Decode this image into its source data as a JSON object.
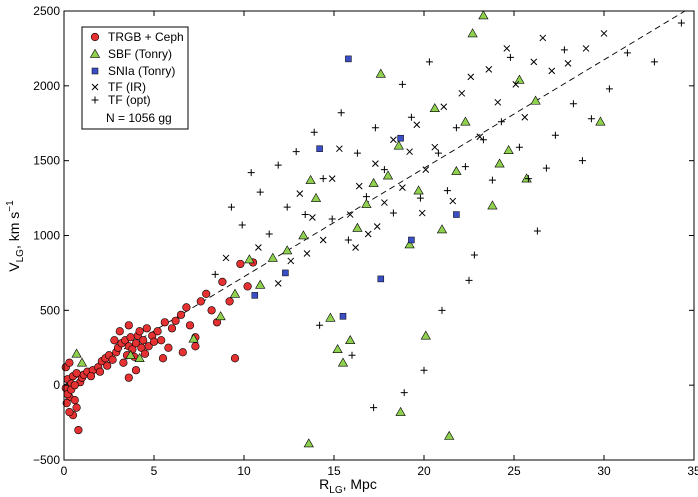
{
  "chart_data": {
    "type": "scatter",
    "xlabel": "R",
    "xlabel_sub": "LG",
    "xlabel_unit": ", Mpc",
    "ylabel": "V",
    "ylabel_sub": "LG",
    "ylabel_unit": ", km s",
    "ylabel_sup": "−1",
    "xlim": [
      0,
      35
    ],
    "ylim": [
      -500,
      2500
    ],
    "xticks": [
      0,
      5,
      10,
      15,
      20,
      25,
      30,
      35
    ],
    "yticks": [
      -500,
      0,
      500,
      1000,
      1500,
      2000,
      2500
    ],
    "legend_position": "top-left",
    "legend_note": "N = 1056 gg",
    "fit_line": {
      "style": "dashed",
      "x": [
        0,
        34.5
      ],
      "y": [
        0,
        2500
      ]
    },
    "colors": {
      "trgb": "#e53131",
      "sbf": "#8fd14f",
      "snia": "#3b4fc4",
      "markers": "#000000"
    },
    "series": [
      {
        "name": "TRGB + Ceph",
        "marker": "circle",
        "points": [
          [
            0.1,
            -20
          ],
          [
            0.2,
            40
          ],
          [
            0.3,
            -80
          ],
          [
            0.4,
            10
          ],
          [
            0.5,
            60
          ],
          [
            0.1,
            120
          ],
          [
            0.3,
            150
          ],
          [
            0.6,
            -100
          ],
          [
            0.7,
            -150
          ],
          [
            0.8,
            -300
          ],
          [
            0.5,
            -200
          ],
          [
            0.2,
            -60
          ],
          [
            0.9,
            20
          ],
          [
            1.0,
            50
          ],
          [
            0.7,
            80
          ],
          [
            0.4,
            -30
          ],
          [
            1.1,
            70
          ],
          [
            1.3,
            90
          ],
          [
            1.6,
            100
          ],
          [
            1.9,
            120
          ],
          [
            2.1,
            160
          ],
          [
            2.3,
            180
          ],
          [
            2.5,
            200
          ],
          [
            2.7,
            170
          ],
          [
            2.9,
            220
          ],
          [
            3.0,
            250
          ],
          [
            3.2,
            280
          ],
          [
            3.3,
            150
          ],
          [
            3.4,
            300
          ],
          [
            3.5,
            200
          ],
          [
            3.6,
            260
          ],
          [
            3.7,
            320
          ],
          [
            3.8,
            240
          ],
          [
            3.9,
            190
          ],
          [
            4.0,
            280
          ],
          [
            4.1,
            330
          ],
          [
            4.2,
            360
          ],
          [
            4.3,
            250
          ],
          [
            4.4,
            300
          ],
          [
            4.5,
            210
          ],
          [
            4.7,
            260
          ],
          [
            4.9,
            330
          ],
          [
            5.0,
            290
          ],
          [
            5.2,
            360
          ],
          [
            5.4,
            300
          ],
          [
            5.6,
            420
          ],
          [
            5.8,
            250
          ],
          [
            6.0,
            380
          ],
          [
            6.2,
            430
          ],
          [
            6.5,
            470
          ],
          [
            6.8,
            520
          ],
          [
            7.0,
            400
          ],
          [
            7.3,
            320
          ],
          [
            7.6,
            560
          ],
          [
            7.9,
            610
          ],
          [
            8.2,
            500
          ],
          [
            8.5,
            420
          ],
          [
            8.8,
            690
          ],
          [
            9.2,
            560
          ],
          [
            9.5,
            180
          ],
          [
            9.8,
            810
          ],
          [
            10.2,
            660
          ],
          [
            10.5,
            820
          ],
          [
            2.8,
            300
          ],
          [
            3.1,
            360
          ],
          [
            3.6,
            400
          ],
          [
            4.6,
            380
          ],
          [
            2.4,
            130
          ],
          [
            3.6,
            50
          ],
          [
            4.0,
            100
          ],
          [
            5.5,
            180
          ],
          [
            6.6,
            220
          ],
          [
            7.3,
            260
          ],
          [
            0.3,
            -180
          ],
          [
            0.15,
            -120
          ],
          [
            0.6,
            0
          ],
          [
            1.5,
            60
          ],
          [
            2.0,
            90
          ]
        ]
      },
      {
        "name": "SBF (Tonry)",
        "marker": "triangle",
        "points": [
          [
            0.7,
            210
          ],
          [
            1.0,
            150
          ],
          [
            3.7,
            200
          ],
          [
            4.2,
            180
          ],
          [
            7.2,
            310
          ],
          [
            8.7,
            460
          ],
          [
            9.5,
            610
          ],
          [
            10.3,
            840
          ],
          [
            10.9,
            670
          ],
          [
            11.6,
            850
          ],
          [
            12.4,
            900
          ],
          [
            13.3,
            1000
          ],
          [
            13.6,
            -390
          ],
          [
            13.7,
            1370
          ],
          [
            14.0,
            1250
          ],
          [
            14.8,
            450
          ],
          [
            15.2,
            240
          ],
          [
            15.5,
            150
          ],
          [
            15.9,
            300
          ],
          [
            16.3,
            1050
          ],
          [
            16.8,
            1210
          ],
          [
            17.2,
            1350
          ],
          [
            17.6,
            2080
          ],
          [
            18.0,
            1400
          ],
          [
            18.6,
            1600
          ],
          [
            18.7,
            -180
          ],
          [
            19.2,
            940
          ],
          [
            19.7,
            1300
          ],
          [
            20.1,
            330
          ],
          [
            20.6,
            1850
          ],
          [
            21.0,
            1040
          ],
          [
            21.4,
            -340
          ],
          [
            21.8,
            1430
          ],
          [
            22.3,
            1760
          ],
          [
            22.7,
            2350
          ],
          [
            23.3,
            2470
          ],
          [
            23.8,
            1200
          ],
          [
            24.2,
            1480
          ],
          [
            24.7,
            1570
          ],
          [
            25.3,
            2040
          ],
          [
            25.7,
            1380
          ],
          [
            26.2,
            1900
          ],
          [
            29.8,
            1760
          ]
        ]
      },
      {
        "name": "SNIa (Tonry)",
        "marker": "square",
        "points": [
          [
            10.6,
            600
          ],
          [
            12.3,
            750
          ],
          [
            14.2,
            1580
          ],
          [
            15.5,
            460
          ],
          [
            15.8,
            2180
          ],
          [
            17.6,
            710
          ],
          [
            18.7,
            1650
          ],
          [
            19.3,
            970
          ],
          [
            21.8,
            1140
          ]
        ]
      },
      {
        "name": "TF (IR)",
        "marker": "x",
        "points": [
          [
            9.0,
            850
          ],
          [
            10.8,
            920
          ],
          [
            11.9,
            680
          ],
          [
            12.6,
            830
          ],
          [
            13.1,
            1280
          ],
          [
            13.8,
            1120
          ],
          [
            14.4,
            970
          ],
          [
            14.9,
            1380
          ],
          [
            15.3,
            1580
          ],
          [
            15.9,
            1140
          ],
          [
            16.4,
            1330
          ],
          [
            16.9,
            1010
          ],
          [
            17.3,
            1480
          ],
          [
            17.8,
            1220
          ],
          [
            18.3,
            1640
          ],
          [
            18.8,
            1320
          ],
          [
            19.2,
            1560
          ],
          [
            19.6,
            1740
          ],
          [
            20.1,
            1440
          ],
          [
            20.6,
            1590
          ],
          [
            21.1,
            1860
          ],
          [
            21.6,
            1230
          ],
          [
            22.1,
            1950
          ],
          [
            22.6,
            2060
          ],
          [
            23.1,
            1660
          ],
          [
            23.6,
            2110
          ],
          [
            24.1,
            1890
          ],
          [
            24.6,
            2250
          ],
          [
            25.1,
            2010
          ],
          [
            25.6,
            1790
          ],
          [
            26.1,
            2160
          ],
          [
            26.6,
            2320
          ],
          [
            27.1,
            2100
          ],
          [
            28.0,
            2150
          ],
          [
            29.0,
            2250
          ],
          [
            30.0,
            2350
          ],
          [
            13.5,
            880
          ],
          [
            16.2,
            920
          ],
          [
            17.4,
            1060
          ],
          [
            19.9,
            1150
          ]
        ]
      },
      {
        "name": "TF (opt)",
        "marker": "plus",
        "points": [
          [
            8.4,
            740
          ],
          [
            9.3,
            1190
          ],
          [
            9.9,
            1070
          ],
          [
            10.4,
            1420
          ],
          [
            10.9,
            1290
          ],
          [
            11.4,
            1010
          ],
          [
            11.9,
            1470
          ],
          [
            12.4,
            1190
          ],
          [
            12.9,
            1560
          ],
          [
            13.4,
            1140
          ],
          [
            13.9,
            1690
          ],
          [
            14.4,
            1380
          ],
          [
            14.9,
            1110
          ],
          [
            15.4,
            1820
          ],
          [
            15.8,
            970
          ],
          [
            16.3,
            1550
          ],
          [
            16.8,
            1260
          ],
          [
            17.3,
            1720
          ],
          [
            17.8,
            1440
          ],
          [
            18.3,
            1150
          ],
          [
            18.8,
            2010
          ],
          [
            19.3,
            1790
          ],
          [
            19.8,
            1250
          ],
          [
            20.3,
            2160
          ],
          [
            20.8,
            1550
          ],
          [
            21.3,
            1300
          ],
          [
            21.8,
            1720
          ],
          [
            22.3,
            1460
          ],
          [
            22.8,
            870
          ],
          [
            23.3,
            1640
          ],
          [
            23.8,
            1370
          ],
          [
            24.3,
            1760
          ],
          [
            24.8,
            2190
          ],
          [
            25.3,
            1590
          ],
          [
            25.8,
            1380
          ],
          [
            26.3,
            1030
          ],
          [
            26.8,
            1450
          ],
          [
            27.3,
            1670
          ],
          [
            27.8,
            2240
          ],
          [
            28.3,
            1880
          ],
          [
            28.8,
            1500
          ],
          [
            29.3,
            1780
          ],
          [
            30.3,
            1980
          ],
          [
            31.3,
            2220
          ],
          [
            32.8,
            2160
          ],
          [
            34.3,
            2420
          ],
          [
            17.2,
            -150
          ],
          [
            18.9,
            -50
          ],
          [
            20.0,
            100
          ],
          [
            14.2,
            400
          ],
          [
            16.0,
            200
          ],
          [
            21.0,
            500
          ],
          [
            22.5,
            700
          ]
        ]
      }
    ]
  }
}
